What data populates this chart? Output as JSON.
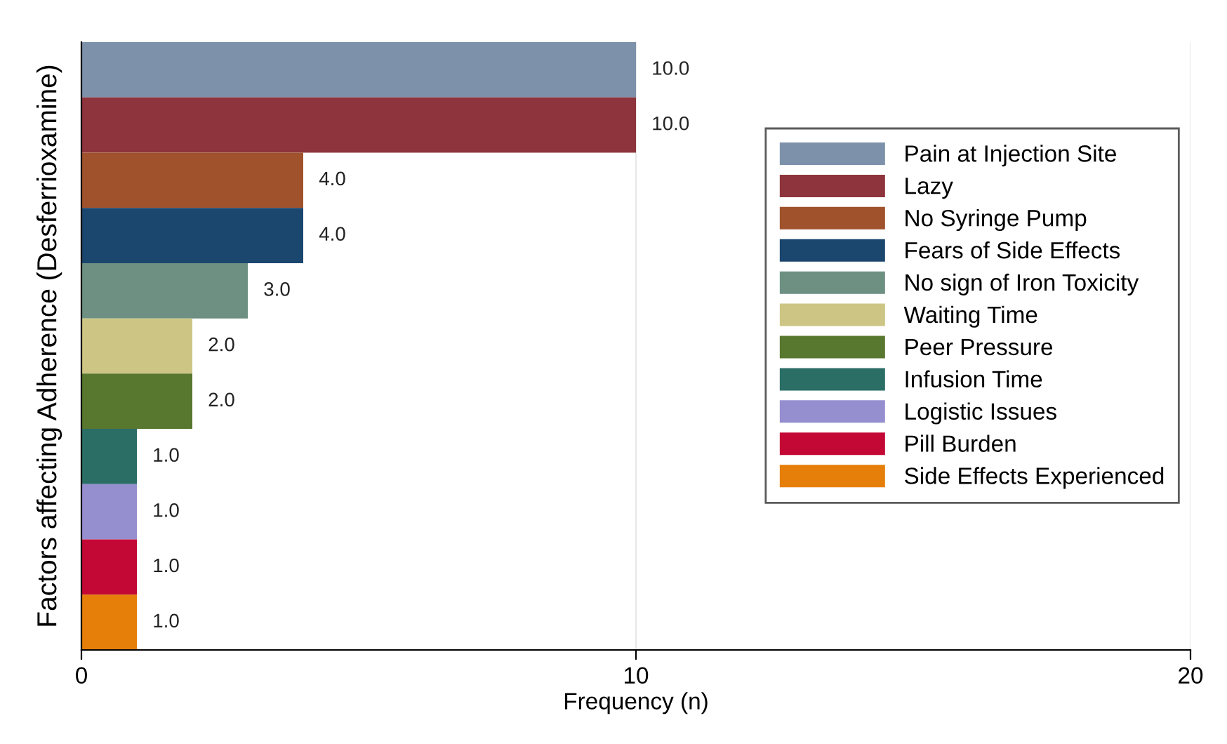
{
  "chart_data": {
    "type": "bar",
    "orientation": "horizontal",
    "ylabel": "Factors affecting Adherence (Desferrioxamine)",
    "xlabel": "Frequency (n)",
    "categories": [
      null,
      null,
      null,
      null,
      null,
      null,
      null,
      null,
      null,
      null,
      null
    ],
    "series": [
      {
        "name": "Pain at Injection Site",
        "color": "#7d92aa",
        "values": [
          10,
          null,
          null,
          null,
          null,
          null,
          null,
          null,
          null,
          null,
          null
        ]
      },
      {
        "name": "Lazy",
        "color": "#8e343c",
        "values": [
          null,
          10,
          null,
          null,
          null,
          null,
          null,
          null,
          null,
          null,
          null
        ]
      },
      {
        "name": "No Syringe Pump",
        "color": "#a0522d",
        "values": [
          null,
          null,
          4,
          null,
          null,
          null,
          null,
          null,
          null,
          null,
          null
        ]
      },
      {
        "name": "Fears of Side Effects",
        "color": "#1b466e",
        "values": [
          null,
          null,
          null,
          4,
          null,
          null,
          null,
          null,
          null,
          null,
          null
        ]
      },
      {
        "name": "No sign of Iron Toxicity",
        "color": "#6e9083",
        "values": [
          null,
          null,
          null,
          null,
          3,
          null,
          null,
          null,
          null,
          null,
          null
        ]
      },
      {
        "name": "Waiting Time",
        "color": "#cdc584",
        "values": [
          null,
          null,
          null,
          null,
          null,
          2,
          null,
          null,
          null,
          null,
          null
        ]
      },
      {
        "name": "Peer Pressure",
        "color": "#58772f",
        "values": [
          null,
          null,
          null,
          null,
          null,
          null,
          2,
          null,
          null,
          null,
          null
        ]
      },
      {
        "name": "Infusion Time",
        "color": "#2b6e66",
        "values": [
          null,
          null,
          null,
          null,
          null,
          null,
          null,
          1,
          null,
          null,
          null
        ]
      },
      {
        "name": "Logistic Issues",
        "color": "#958fd0",
        "values": [
          null,
          null,
          null,
          null,
          null,
          null,
          null,
          null,
          1,
          null,
          null
        ]
      },
      {
        "name": "Pill Burden",
        "color": "#c30836",
        "values": [
          null,
          null,
          null,
          null,
          null,
          null,
          null,
          null,
          null,
          1,
          null
        ]
      },
      {
        "name": "Side Effects Experienced",
        "color": "#e57f0a",
        "values": [
          null,
          null,
          null,
          null,
          null,
          null,
          null,
          null,
          null,
          null,
          1
        ]
      }
    ],
    "value_labels": [
      "10.0",
      "10.0",
      "4.0",
      "4.0",
      "3.0",
      "2.0",
      "2.0",
      "1.0",
      "1.0",
      "1.0",
      "1.0"
    ],
    "xlim": [
      0,
      20
    ],
    "xticks": [
      0,
      10,
      20
    ],
    "grid": "x",
    "legend": "right"
  }
}
